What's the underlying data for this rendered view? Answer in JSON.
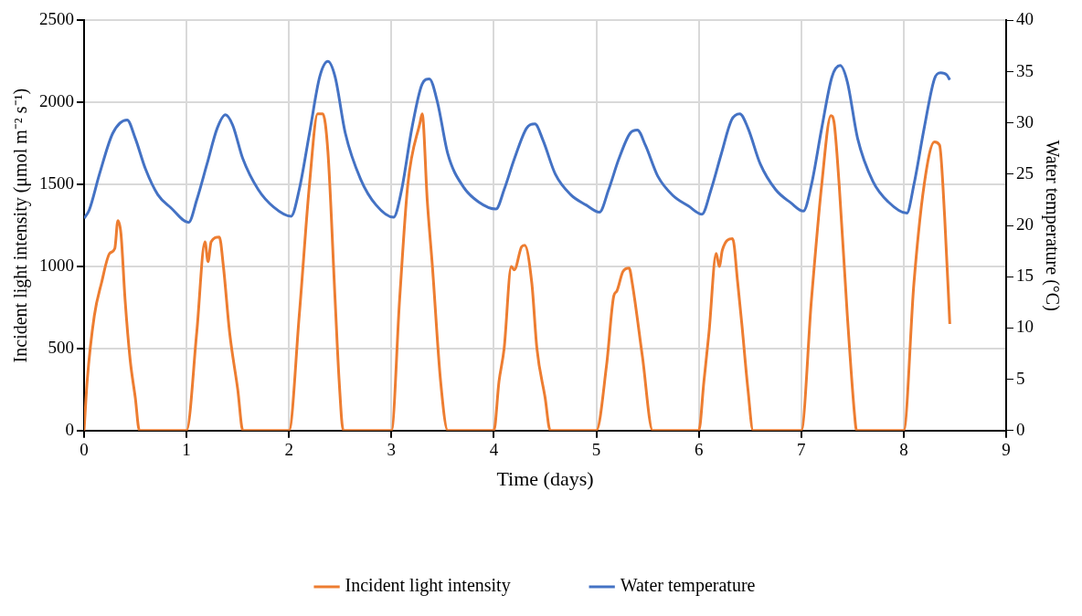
{
  "chart_data": {
    "type": "line",
    "xlabel": "Time (days)",
    "ylabel": "Incident light intensity (μmol m⁻² s⁻¹)",
    "y2label": "Water temperature (°C)",
    "xlim": [
      0,
      9
    ],
    "xticks": [
      0,
      1,
      2,
      3,
      4,
      5,
      6,
      7,
      8,
      9
    ],
    "ylim": [
      0,
      2500
    ],
    "yticks": [
      0,
      500,
      1000,
      1500,
      2000,
      2500
    ],
    "y2lim": [
      0,
      40
    ],
    "y2ticks": [
      0,
      5,
      10,
      15,
      20,
      25,
      30,
      35,
      40
    ],
    "grid": true,
    "legend": "bottom",
    "marker": "none",
    "line_style": "solid",
    "series": [
      {
        "name": "Incident light intensity",
        "color": "#ed7d31",
        "x": [
          0,
          0.03,
          0.1,
          0.17,
          0.25,
          0.3,
          0.33,
          0.36,
          0.4,
          0.45,
          0.5,
          0.54,
          1.0,
          1.1,
          1.18,
          1.21,
          1.24,
          1.32,
          1.36,
          1.42,
          1.5,
          1.55,
          2.0,
          2.1,
          2.2,
          2.28,
          2.33,
          2.38,
          2.45,
          2.49,
          2.53,
          3.0,
          3.08,
          3.16,
          3.28,
          3.3,
          3.35,
          3.4,
          3.48,
          3.55,
          4.0,
          4.05,
          4.1,
          4.17,
          4.2,
          4.27,
          4.3,
          4.37,
          4.42,
          4.5,
          4.55,
          5.0,
          5.1,
          5.17,
          5.2,
          5.26,
          5.32,
          5.35,
          5.45,
          5.55,
          6.0,
          6.05,
          6.1,
          6.17,
          6.2,
          6.23,
          6.33,
          6.38,
          6.42,
          6.48,
          6.53,
          7.0,
          7.1,
          7.2,
          7.29,
          7.32,
          7.37,
          7.45,
          7.52,
          7.54,
          8.0,
          8.1,
          8.2,
          8.3,
          8.35,
          8.4,
          8.45
        ],
        "values": [
          0,
          300,
          700,
          900,
          1080,
          1110,
          1280,
          1200,
          800,
          430,
          200,
          0,
          0,
          600,
          1150,
          1030,
          1150,
          1180,
          1000,
          600,
          250,
          0,
          0,
          700,
          1500,
          1930,
          1930,
          1700,
          800,
          300,
          0,
          0,
          800,
          1500,
          1880,
          1930,
          1400,
          1000,
          300,
          0,
          0,
          300,
          500,
          1000,
          980,
          1120,
          1130,
          900,
          500,
          200,
          0,
          0,
          400,
          820,
          850,
          970,
          990,
          900,
          450,
          0,
          0,
          300,
          600,
          1080,
          1000,
          1100,
          1170,
          900,
          650,
          250,
          0,
          0,
          800,
          1500,
          1920,
          1880,
          1500,
          700,
          100,
          0,
          0,
          900,
          1500,
          1760,
          1740,
          1300,
          650
        ]
      },
      {
        "name": "Water temperature",
        "color": "#4472c4",
        "axis": "y2",
        "x": [
          0,
          0.05,
          0.15,
          0.28,
          0.42,
          0.5,
          0.6,
          0.72,
          0.85,
          1.02,
          1.1,
          1.2,
          1.3,
          1.38,
          1.45,
          1.55,
          1.7,
          1.85,
          2.02,
          2.1,
          2.2,
          2.3,
          2.38,
          2.45,
          2.55,
          2.7,
          2.85,
          3.02,
          3.1,
          3.2,
          3.3,
          3.37,
          3.45,
          3.55,
          3.7,
          3.85,
          4.02,
          4.1,
          4.2,
          4.32,
          4.4,
          4.48,
          4.6,
          4.75,
          4.9,
          5.03,
          5.12,
          5.22,
          5.33,
          5.4,
          5.48,
          5.6,
          5.75,
          5.9,
          6.03,
          6.12,
          6.22,
          6.32,
          6.4,
          6.48,
          6.6,
          6.75,
          6.9,
          7.02,
          7.1,
          7.2,
          7.3,
          7.38,
          7.45,
          7.55,
          7.7,
          7.85,
          8.03,
          8.1,
          8.2,
          8.3,
          8.36,
          8.42,
          8.45
        ],
        "values": [
          20.7,
          21.5,
          25,
          29,
          30.3,
          28.5,
          25.5,
          23,
          21.7,
          20.3,
          22.5,
          26,
          29.5,
          30.8,
          29.8,
          26.5,
          23.5,
          21.8,
          20.9,
          23.5,
          29,
          34.5,
          36,
          34.5,
          29,
          24.5,
          22,
          20.8,
          23.5,
          29.5,
          33.8,
          34.3,
          32,
          27,
          23.8,
          22.3,
          21.6,
          23.5,
          26.5,
          29.5,
          29.9,
          28.3,
          25,
          23,
          22,
          21.3,
          23.5,
          26.5,
          29,
          29.3,
          27.8,
          24.8,
          22.9,
          21.9,
          21.1,
          23.5,
          27,
          30.3,
          30.9,
          29.5,
          26,
          23.5,
          22.2,
          21.4,
          24,
          29.5,
          34.5,
          35.6,
          34,
          28.5,
          24.3,
          22.3,
          21.2,
          24,
          29.5,
          34.3,
          34.9,
          34.7,
          34.2
        ]
      }
    ]
  }
}
